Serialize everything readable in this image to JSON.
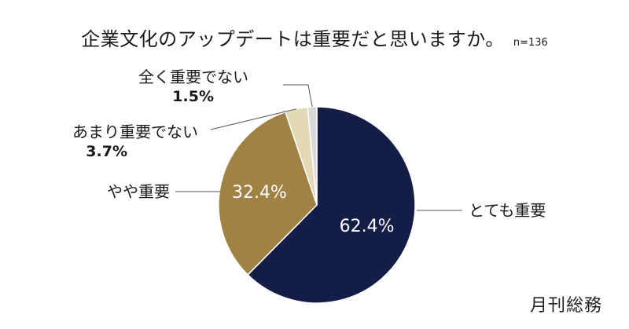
{
  "chart_data": {
    "type": "pie",
    "title": "企業文化のアップデートは重要だと思いますか。",
    "sample_note": "n=136",
    "categories": [
      "とても重要",
      "やや重要",
      "あまり重要でない",
      "全く重要でない"
    ],
    "values": [
      62.4,
      32.4,
      3.7,
      1.5
    ],
    "value_labels": [
      "62.4%",
      "32.4%",
      "3.7%",
      "1.5%"
    ],
    "colors": [
      "#141d45",
      "#a08244",
      "#e3d9b5",
      "#d8d8d8"
    ]
  },
  "brand": "月刊総務"
}
